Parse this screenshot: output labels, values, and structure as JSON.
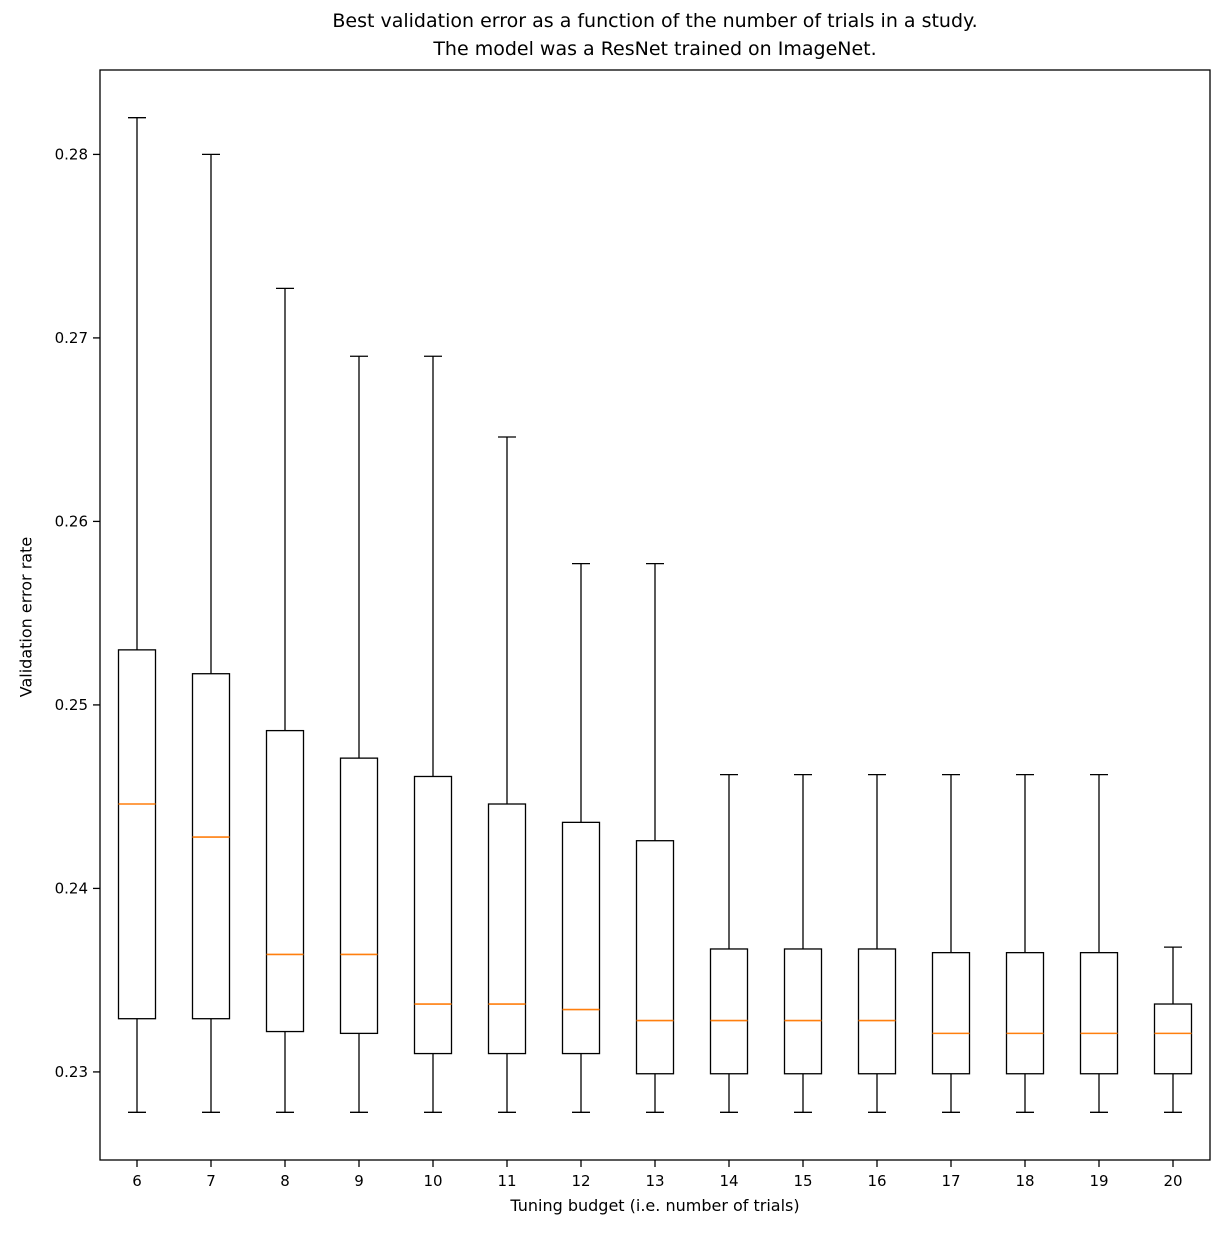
{
  "chart_data": {
    "type": "boxplot",
    "title_line1": "Best validation error as a function of the number of trials in a study.",
    "title_line2": "The model was a ResNet trained on ImageNet.",
    "xlabel": "Tuning budget (i.e. number of trials)",
    "ylabel": "Validation error rate",
    "categories": [
      6,
      7,
      8,
      9,
      10,
      11,
      12,
      13,
      14,
      15,
      16,
      17,
      18,
      19,
      20
    ],
    "y_ticks": [
      0.23,
      0.24,
      0.25,
      0.26,
      0.27,
      0.28
    ],
    "ylim": [
      0.2252,
      0.2846
    ],
    "grid": false,
    "legend": "none",
    "box_edge_color": "#000000",
    "box_fill_color": "#ffffff",
    "median_color": "#ff7f0e",
    "boxes": [
      {
        "x": 6,
        "min": 0.2278,
        "q1": 0.2329,
        "median": 0.2446,
        "q3": 0.253,
        "max": 0.282
      },
      {
        "x": 7,
        "min": 0.2278,
        "q1": 0.2329,
        "median": 0.2428,
        "q3": 0.2517,
        "max": 0.28
      },
      {
        "x": 8,
        "min": 0.2278,
        "q1": 0.2322,
        "median": 0.2364,
        "q3": 0.2486,
        "max": 0.2727
      },
      {
        "x": 9,
        "min": 0.2278,
        "q1": 0.2321,
        "median": 0.2364,
        "q3": 0.2471,
        "max": 0.269
      },
      {
        "x": 10,
        "min": 0.2278,
        "q1": 0.231,
        "median": 0.2337,
        "q3": 0.2461,
        "max": 0.269
      },
      {
        "x": 11,
        "min": 0.2278,
        "q1": 0.231,
        "median": 0.2337,
        "q3": 0.2446,
        "max": 0.2646
      },
      {
        "x": 12,
        "min": 0.2278,
        "q1": 0.231,
        "median": 0.2334,
        "q3": 0.2436,
        "max": 0.2577
      },
      {
        "x": 13,
        "min": 0.2278,
        "q1": 0.2299,
        "median": 0.2328,
        "q3": 0.2426,
        "max": 0.2577
      },
      {
        "x": 14,
        "min": 0.2278,
        "q1": 0.2299,
        "median": 0.2328,
        "q3": 0.2367,
        "max": 0.2462
      },
      {
        "x": 15,
        "min": 0.2278,
        "q1": 0.2299,
        "median": 0.2328,
        "q3": 0.2367,
        "max": 0.2462
      },
      {
        "x": 16,
        "min": 0.2278,
        "q1": 0.2299,
        "median": 0.2328,
        "q3": 0.2367,
        "max": 0.2462
      },
      {
        "x": 17,
        "min": 0.2278,
        "q1": 0.2299,
        "median": 0.2321,
        "q3": 0.2365,
        "max": 0.2462
      },
      {
        "x": 18,
        "min": 0.2278,
        "q1": 0.2299,
        "median": 0.2321,
        "q3": 0.2365,
        "max": 0.2462
      },
      {
        "x": 19,
        "min": 0.2278,
        "q1": 0.2299,
        "median": 0.2321,
        "q3": 0.2365,
        "max": 0.2462
      },
      {
        "x": 20,
        "min": 0.2278,
        "q1": 0.2299,
        "median": 0.2321,
        "q3": 0.2337,
        "max": 0.2368
      }
    ]
  }
}
